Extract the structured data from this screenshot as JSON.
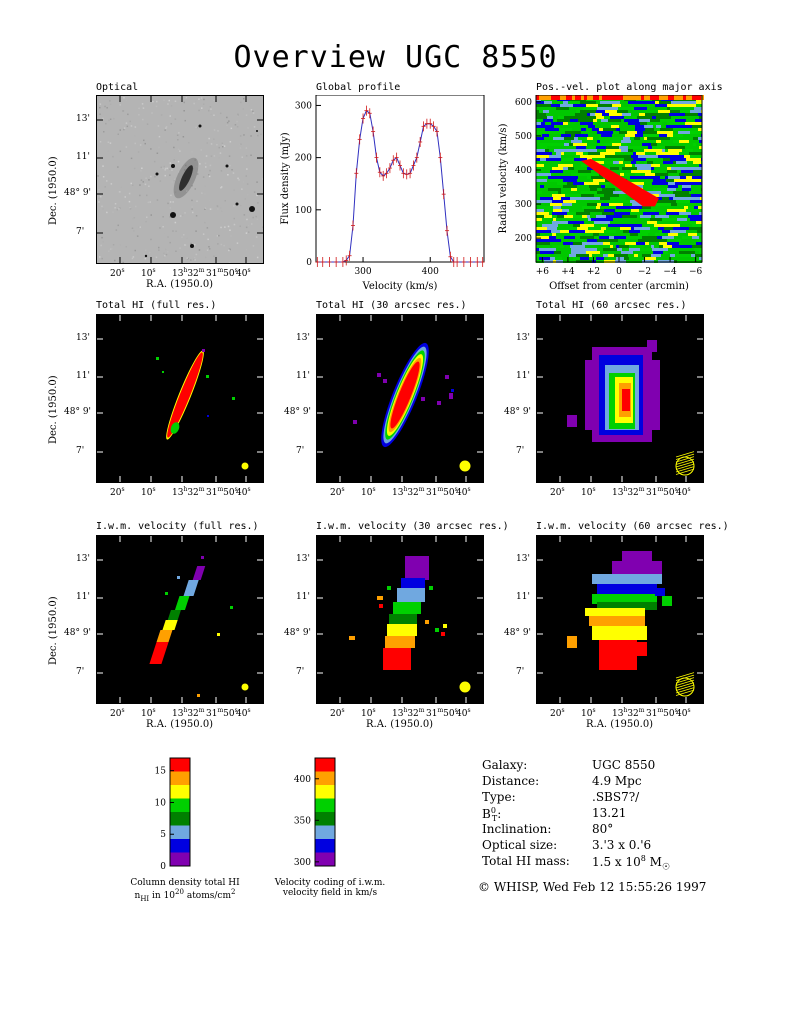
{
  "page_title": "Overview UGC 8550",
  "panels": {
    "optical": {
      "title": "Optical"
    },
    "global_profile": {
      "title": "Global profile"
    },
    "pv_plot": {
      "title": "Pos.-vel. plot along major axis"
    },
    "total_hi_full": {
      "title": "Total HI (full res.)"
    },
    "total_hi_30": {
      "title": "Total HI (30 arcsec res.)"
    },
    "total_hi_60": {
      "title": "Total HI (60 arcsec res.)"
    },
    "iwm_full": {
      "title": "I.w.m. velocity (full res.)"
    },
    "iwm_30": {
      "title": "I.w.m. velocity (30 arcsec res.)"
    },
    "iwm_60": {
      "title": "I.w.m. velocity (60 arcsec res.)"
    }
  },
  "sky_axes": {
    "ra_label": "R.A. (1950.0)",
    "dec_label": "Dec. (1950.0)",
    "ra_ticks": [
      "20",
      "10",
      "13h32m",
      "31m50",
      "40"
    ],
    "dec_ticks": [
      "13'",
      "11'",
      "48° 9'",
      "7'"
    ]
  },
  "chart_data": [
    {
      "type": "line",
      "title": "Global profile",
      "xlabel": "Velocity (km/s)",
      "ylabel": "Flux density (mJy)",
      "xlim": [
        230,
        480
      ],
      "ylim": [
        0,
        320
      ],
      "xticks": [
        300,
        400
      ],
      "yticks": [
        0,
        100,
        200,
        300
      ],
      "grid": false,
      "series": [
        {
          "color": "#3030c0",
          "errorbar_color": "#d01818",
          "x": [
            232,
            240,
            250,
            260,
            270,
            275,
            280,
            285,
            290,
            295,
            300,
            305,
            310,
            315,
            320,
            325,
            330,
            335,
            340,
            345,
            350,
            355,
            360,
            365,
            370,
            375,
            380,
            385,
            390,
            395,
            400,
            405,
            410,
            415,
            420,
            425,
            430,
            435,
            440,
            450,
            460,
            470,
            478
          ],
          "y": [
            0,
            0,
            0,
            0,
            0,
            3,
            12,
            70,
            170,
            235,
            275,
            290,
            285,
            250,
            200,
            172,
            165,
            170,
            180,
            195,
            200,
            185,
            170,
            168,
            170,
            185,
            200,
            230,
            260,
            265,
            265,
            260,
            250,
            200,
            130,
            60,
            10,
            0,
            0,
            0,
            0,
            0,
            0
          ]
        }
      ]
    },
    {
      "type": "heatmap",
      "title": "Pos.-vel. plot along major axis",
      "xlabel": "Offset from center (arcmin)",
      "ylabel": "Radial velocity (km/s)",
      "xlim": [
        6.5,
        -6.5
      ],
      "ylim": [
        130,
        620
      ],
      "xticks": [
        "+6",
        "+4",
        "+2",
        "0",
        "−2",
        "−4",
        "−6"
      ],
      "yticks": [
        200,
        300,
        400,
        500,
        600
      ],
      "emission_ridge": {
        "offset_start": 2.5,
        "velocity_start": 415,
        "offset_end": -2.5,
        "velocity_end": 305
      }
    },
    {
      "type": "heatmap",
      "title": "Column density total HI",
      "colorbar": {
        "label": "Column density total HI",
        "sublabel": "n_HI in 10^20 atoms/cm^2",
        "ticks": [
          0,
          5,
          10,
          15
        ],
        "range": [
          0,
          17
        ],
        "colors": [
          "#8000b0",
          "#0000e0",
          "#70a8e0",
          "#008000",
          "#00d000",
          "#ffff00",
          "#ffa000",
          "#ff0000"
        ]
      }
    },
    {
      "type": "heatmap",
      "title": "Velocity coding of i.w.m. velocity field in km/s",
      "colorbar": {
        "label": "Velocity coding of i.w.m.",
        "sublabel": "velocity field in km/s",
        "ticks": [
          300,
          350,
          400
        ],
        "range": [
          295,
          425
        ],
        "colors": [
          "#8000b0",
          "#0000e0",
          "#70a8e0",
          "#008000",
          "#00d000",
          "#ffff00",
          "#ffa000",
          "#ff0000"
        ]
      }
    }
  ],
  "galaxy_info": {
    "galaxy": {
      "label": "Galaxy:",
      "value": "UGC 8550"
    },
    "distance": {
      "label": "Distance:",
      "value": "4.9 Mpc"
    },
    "type": {
      "label": "Type:",
      "value": ".SBS7?/"
    },
    "bt": {
      "label": "B",
      "sup": "0",
      "sub": "T",
      "value": "13.21"
    },
    "inclination": {
      "label": "Inclination:",
      "value": "80°"
    },
    "optical_size": {
      "label": "Optical size:",
      "value": "3.'3 x 0.'6"
    },
    "total_hi_mass": {
      "label": "Total HI mass:",
      "value": "1.5 x 10",
      "exp": "8",
      "unit": "M"
    }
  },
  "footer": "© WHISP, Wed Feb 12 15:55:26 1997"
}
